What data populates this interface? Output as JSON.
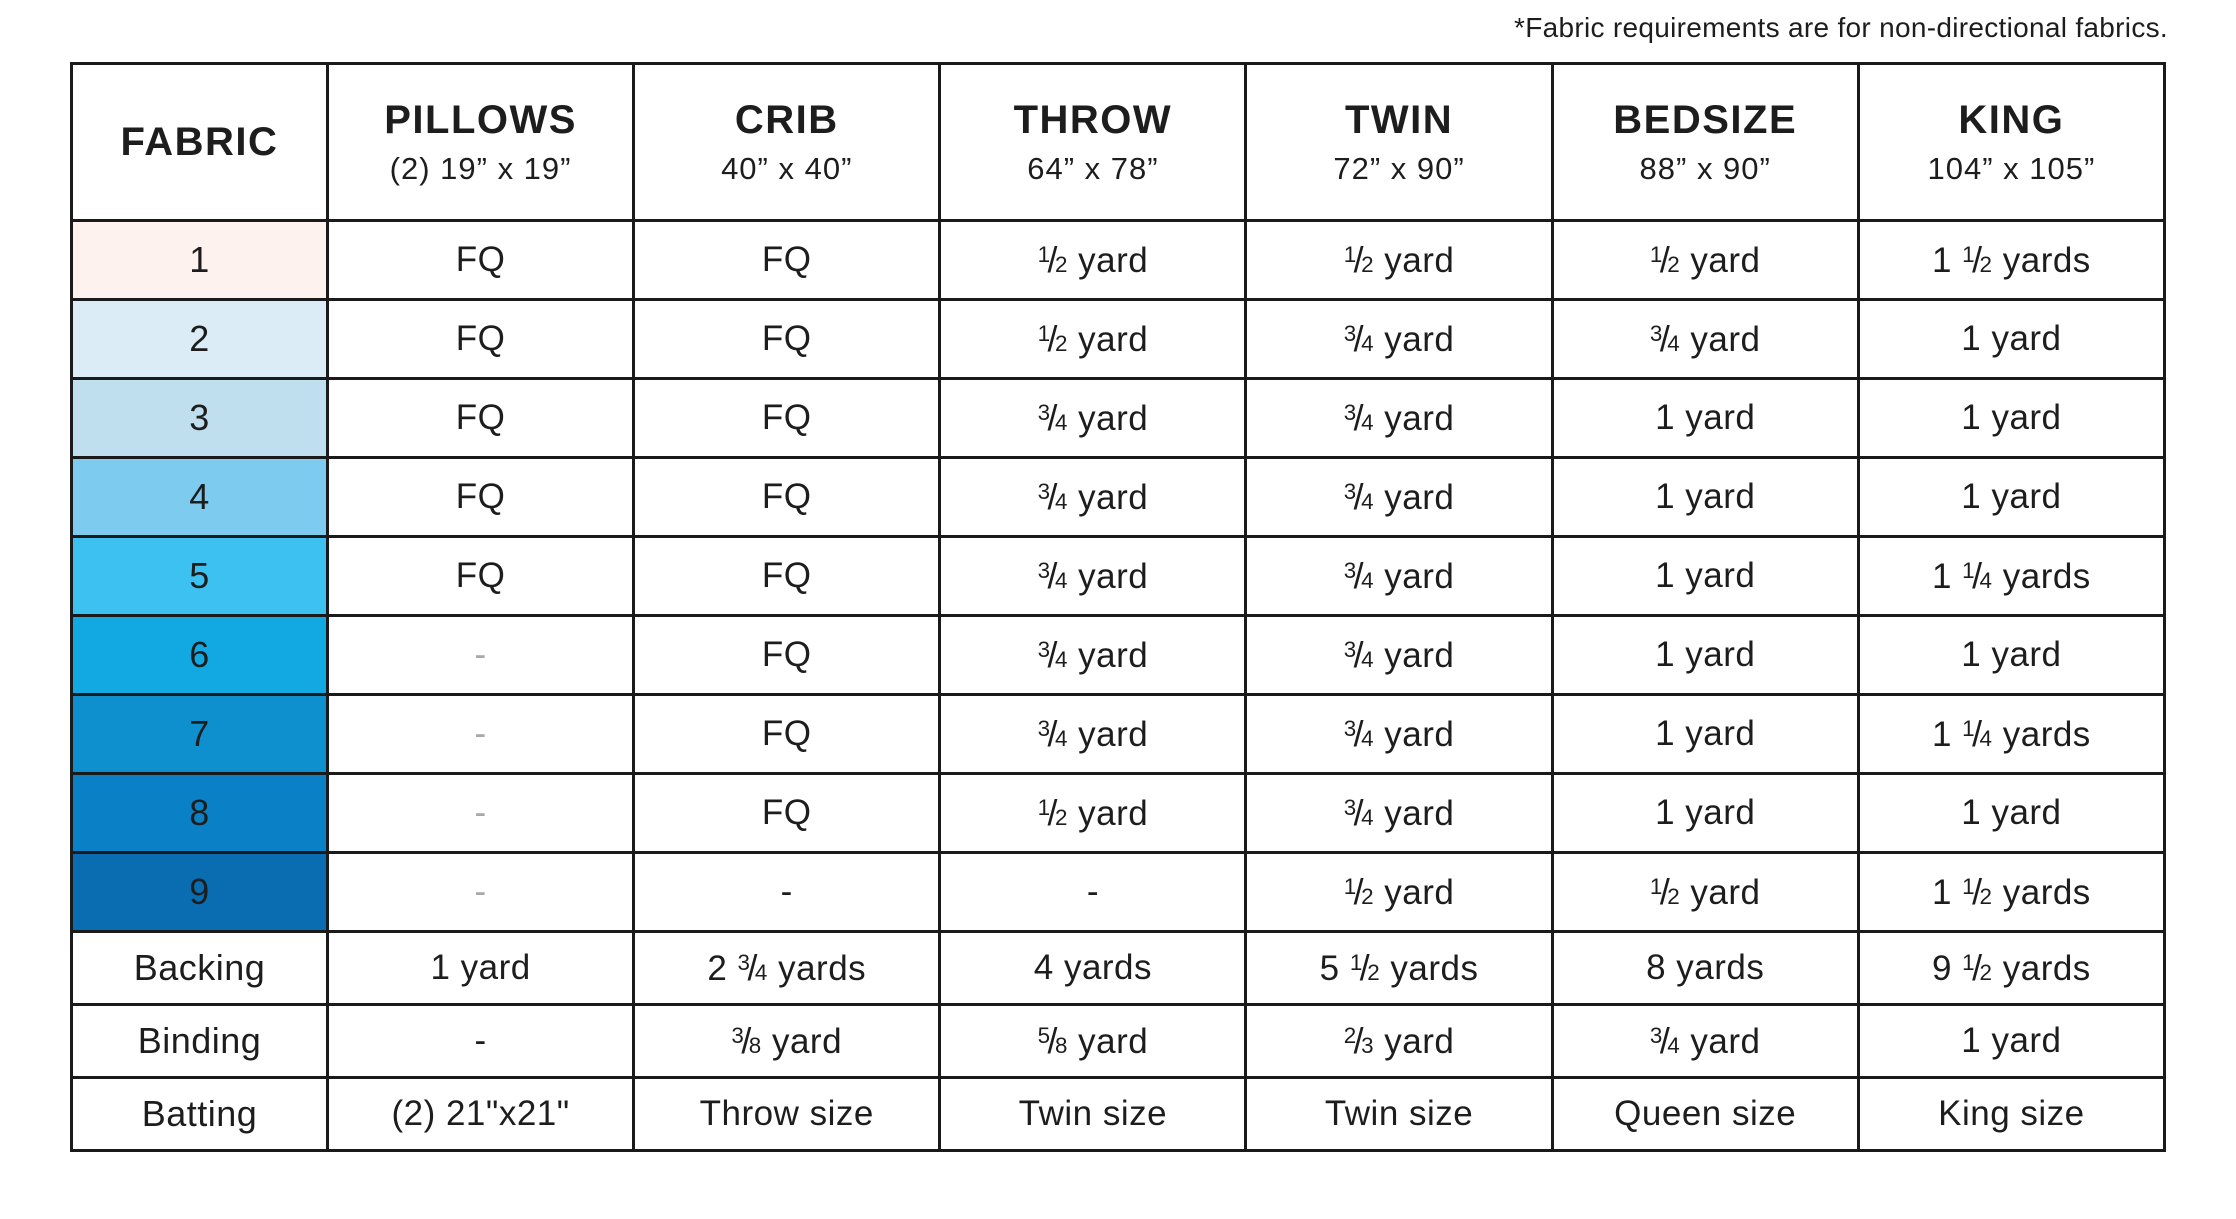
{
  "note": "*Fabric requirements are for non-directional fabrics.",
  "table": {
    "columns": [
      {
        "label": "FABRIC",
        "sub": ""
      },
      {
        "label": "PILLOWS",
        "sub": "(2) 19” x 19”"
      },
      {
        "label": "CRIB",
        "sub": "40” x 40”"
      },
      {
        "label": "THROW",
        "sub": "64” x 78”"
      },
      {
        "label": "TWIN",
        "sub": "72” x 90”"
      },
      {
        "label": "BEDSIZE",
        "sub": "88” x 90”"
      },
      {
        "label": "KING",
        "sub": "104” x 105”"
      }
    ],
    "rows": [
      {
        "label": "1",
        "swatch": "#fdf2ee",
        "cells": [
          "FQ",
          "FQ",
          "1/2 yard",
          "1/2 yard",
          "1/2 yard",
          "1 1/2 yards"
        ]
      },
      {
        "label": "2",
        "swatch": "#dbecf6",
        "cells": [
          "FQ",
          "FQ",
          "1/2 yard",
          "3/4 yard",
          "3/4 yard",
          "1 yard"
        ]
      },
      {
        "label": "3",
        "swatch": "#c0dfee",
        "cells": [
          "FQ",
          "FQ",
          "3/4 yard",
          "3/4 yard",
          "1 yard",
          "1 yard"
        ]
      },
      {
        "label": "4",
        "swatch": "#7ecbf0",
        "cells": [
          "FQ",
          "FQ",
          "3/4 yard",
          "3/4 yard",
          "1 yard",
          "1 yard"
        ]
      },
      {
        "label": "5",
        "swatch": "#3dc1f0",
        "cells": [
          "FQ",
          "FQ",
          "3/4 yard",
          "3/4 yard",
          "1 yard",
          "1 1/4 yards"
        ]
      },
      {
        "label": "6",
        "swatch": "#12a9e2",
        "cells": [
          {
            "text": "-",
            "muted": true
          },
          "FQ",
          "3/4 yard",
          "3/4 yard",
          "1 yard",
          "1 yard"
        ]
      },
      {
        "label": "7",
        "swatch": "#0e90cf",
        "cells": [
          {
            "text": "-",
            "muted": true
          },
          "FQ",
          "3/4 yard",
          "3/4 yard",
          "1 yard",
          "1 1/4 yards"
        ]
      },
      {
        "label": "8",
        "swatch": "#0a80c6",
        "cells": [
          {
            "text": "-",
            "muted": true
          },
          "FQ",
          "1/2 yard",
          "3/4 yard",
          "1 yard",
          "1 yard"
        ]
      },
      {
        "label": "9",
        "swatch": "#0a6db1",
        "cells": [
          {
            "text": "-",
            "muted": true
          },
          "-",
          "-",
          "1/2 yard",
          "1/2 yard",
          "1 1/2 yards"
        ]
      },
      {
        "label": "Backing",
        "swatch": null,
        "cells": [
          "1 yard",
          "2 3/4 yards",
          "4 yards",
          "5 1/2 yards",
          "8 yards",
          "9 1/2 yards"
        ]
      },
      {
        "label": "Binding",
        "swatch": null,
        "cells": [
          "-",
          "3/8 yard",
          "5/8 yard",
          "2/3 yard",
          "3/4 yard",
          "1 yard"
        ]
      },
      {
        "label": "Batting",
        "swatch": null,
        "cells": [
          "(2) 21\"x21\"",
          "Throw size",
          "Twin size",
          "Twin size",
          "Queen size",
          "King size"
        ]
      }
    ]
  },
  "colors": {
    "border": "#1a1a1a",
    "text": "#1d1d1d",
    "muted_dash": "#a8a8a8",
    "swatches": [
      "#fdf2ee",
      "#dbecf6",
      "#c0dfee",
      "#7ecbf0",
      "#3dc1f0",
      "#12a9e2",
      "#0e90cf",
      "#0a80c6",
      "#0a6db1"
    ]
  }
}
